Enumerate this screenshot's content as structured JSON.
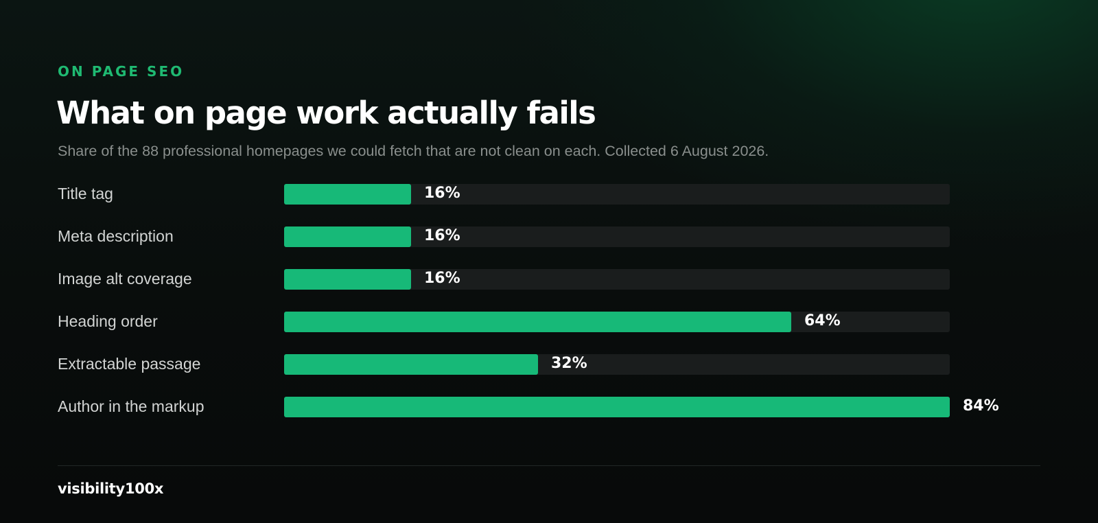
{
  "header": {
    "eyebrow": "ON PAGE SEO",
    "title": "What on page work actually fails",
    "subtitle": "Share of the 88 professional homepages we could fetch that are not clean on each. Collected 6 August 2026."
  },
  "footer": {
    "brand": "visibility100x"
  },
  "colors": {
    "accent": "#1fba72",
    "bar": "#17b978",
    "track": "#1a1d1d",
    "background": "#090d0c"
  },
  "chart_data": {
    "type": "bar",
    "orientation": "horizontal",
    "categories": [
      "Title tag",
      "Meta description",
      "Image alt coverage",
      "Heading order",
      "Extractable passage",
      "Author in the markup"
    ],
    "values": [
      16,
      16,
      16,
      64,
      32,
      84
    ],
    "value_labels": [
      "16%",
      "16%",
      "16%",
      "64%",
      "32%",
      "84%"
    ],
    "unit": "%",
    "xlim": [
      0,
      84
    ],
    "grid": false,
    "legend": "none"
  }
}
